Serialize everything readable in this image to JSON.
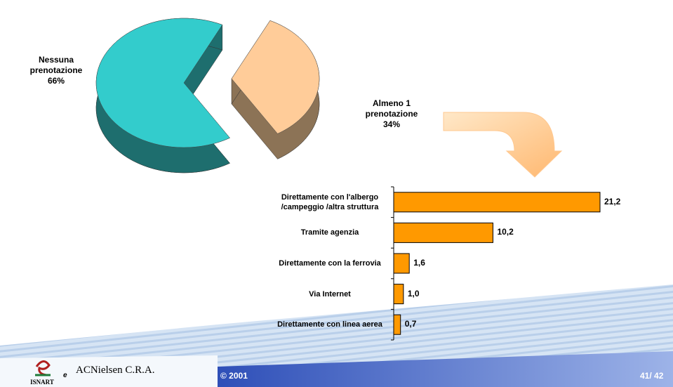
{
  "chart_data": [
    {
      "type": "pie3d",
      "categories": [
        "Nessuna prenotazione",
        "Almeno 1 prenotazione"
      ],
      "values": [
        66,
        34
      ],
      "value_labels": [
        "66%",
        "34%"
      ],
      "colors": [
        "#33CCCC",
        "#FFCC99"
      ],
      "side_colors": [
        "#1E6E6E",
        "#8C7356"
      ]
    },
    {
      "type": "hbar",
      "categories": [
        "Direttamente con l'albergo /campeggio /altra struttura",
        "Tramite agenzia",
        "Direttamente con la ferrovia",
        "Via Internet",
        "Direttamente con linea aerea"
      ],
      "values": [
        21.2,
        10.2,
        1.6,
        1.0,
        0.7
      ],
      "value_labels": [
        "21,2",
        "10,2",
        "1,6",
        "1,0",
        "0,7"
      ],
      "color": "#FF9900"
    }
  ],
  "footer": {
    "logo1": "ISNART",
    "connector": "e",
    "logo2": "ACNielsen C.R.A.",
    "copyright": "© 2001",
    "page": "41/ 42"
  }
}
